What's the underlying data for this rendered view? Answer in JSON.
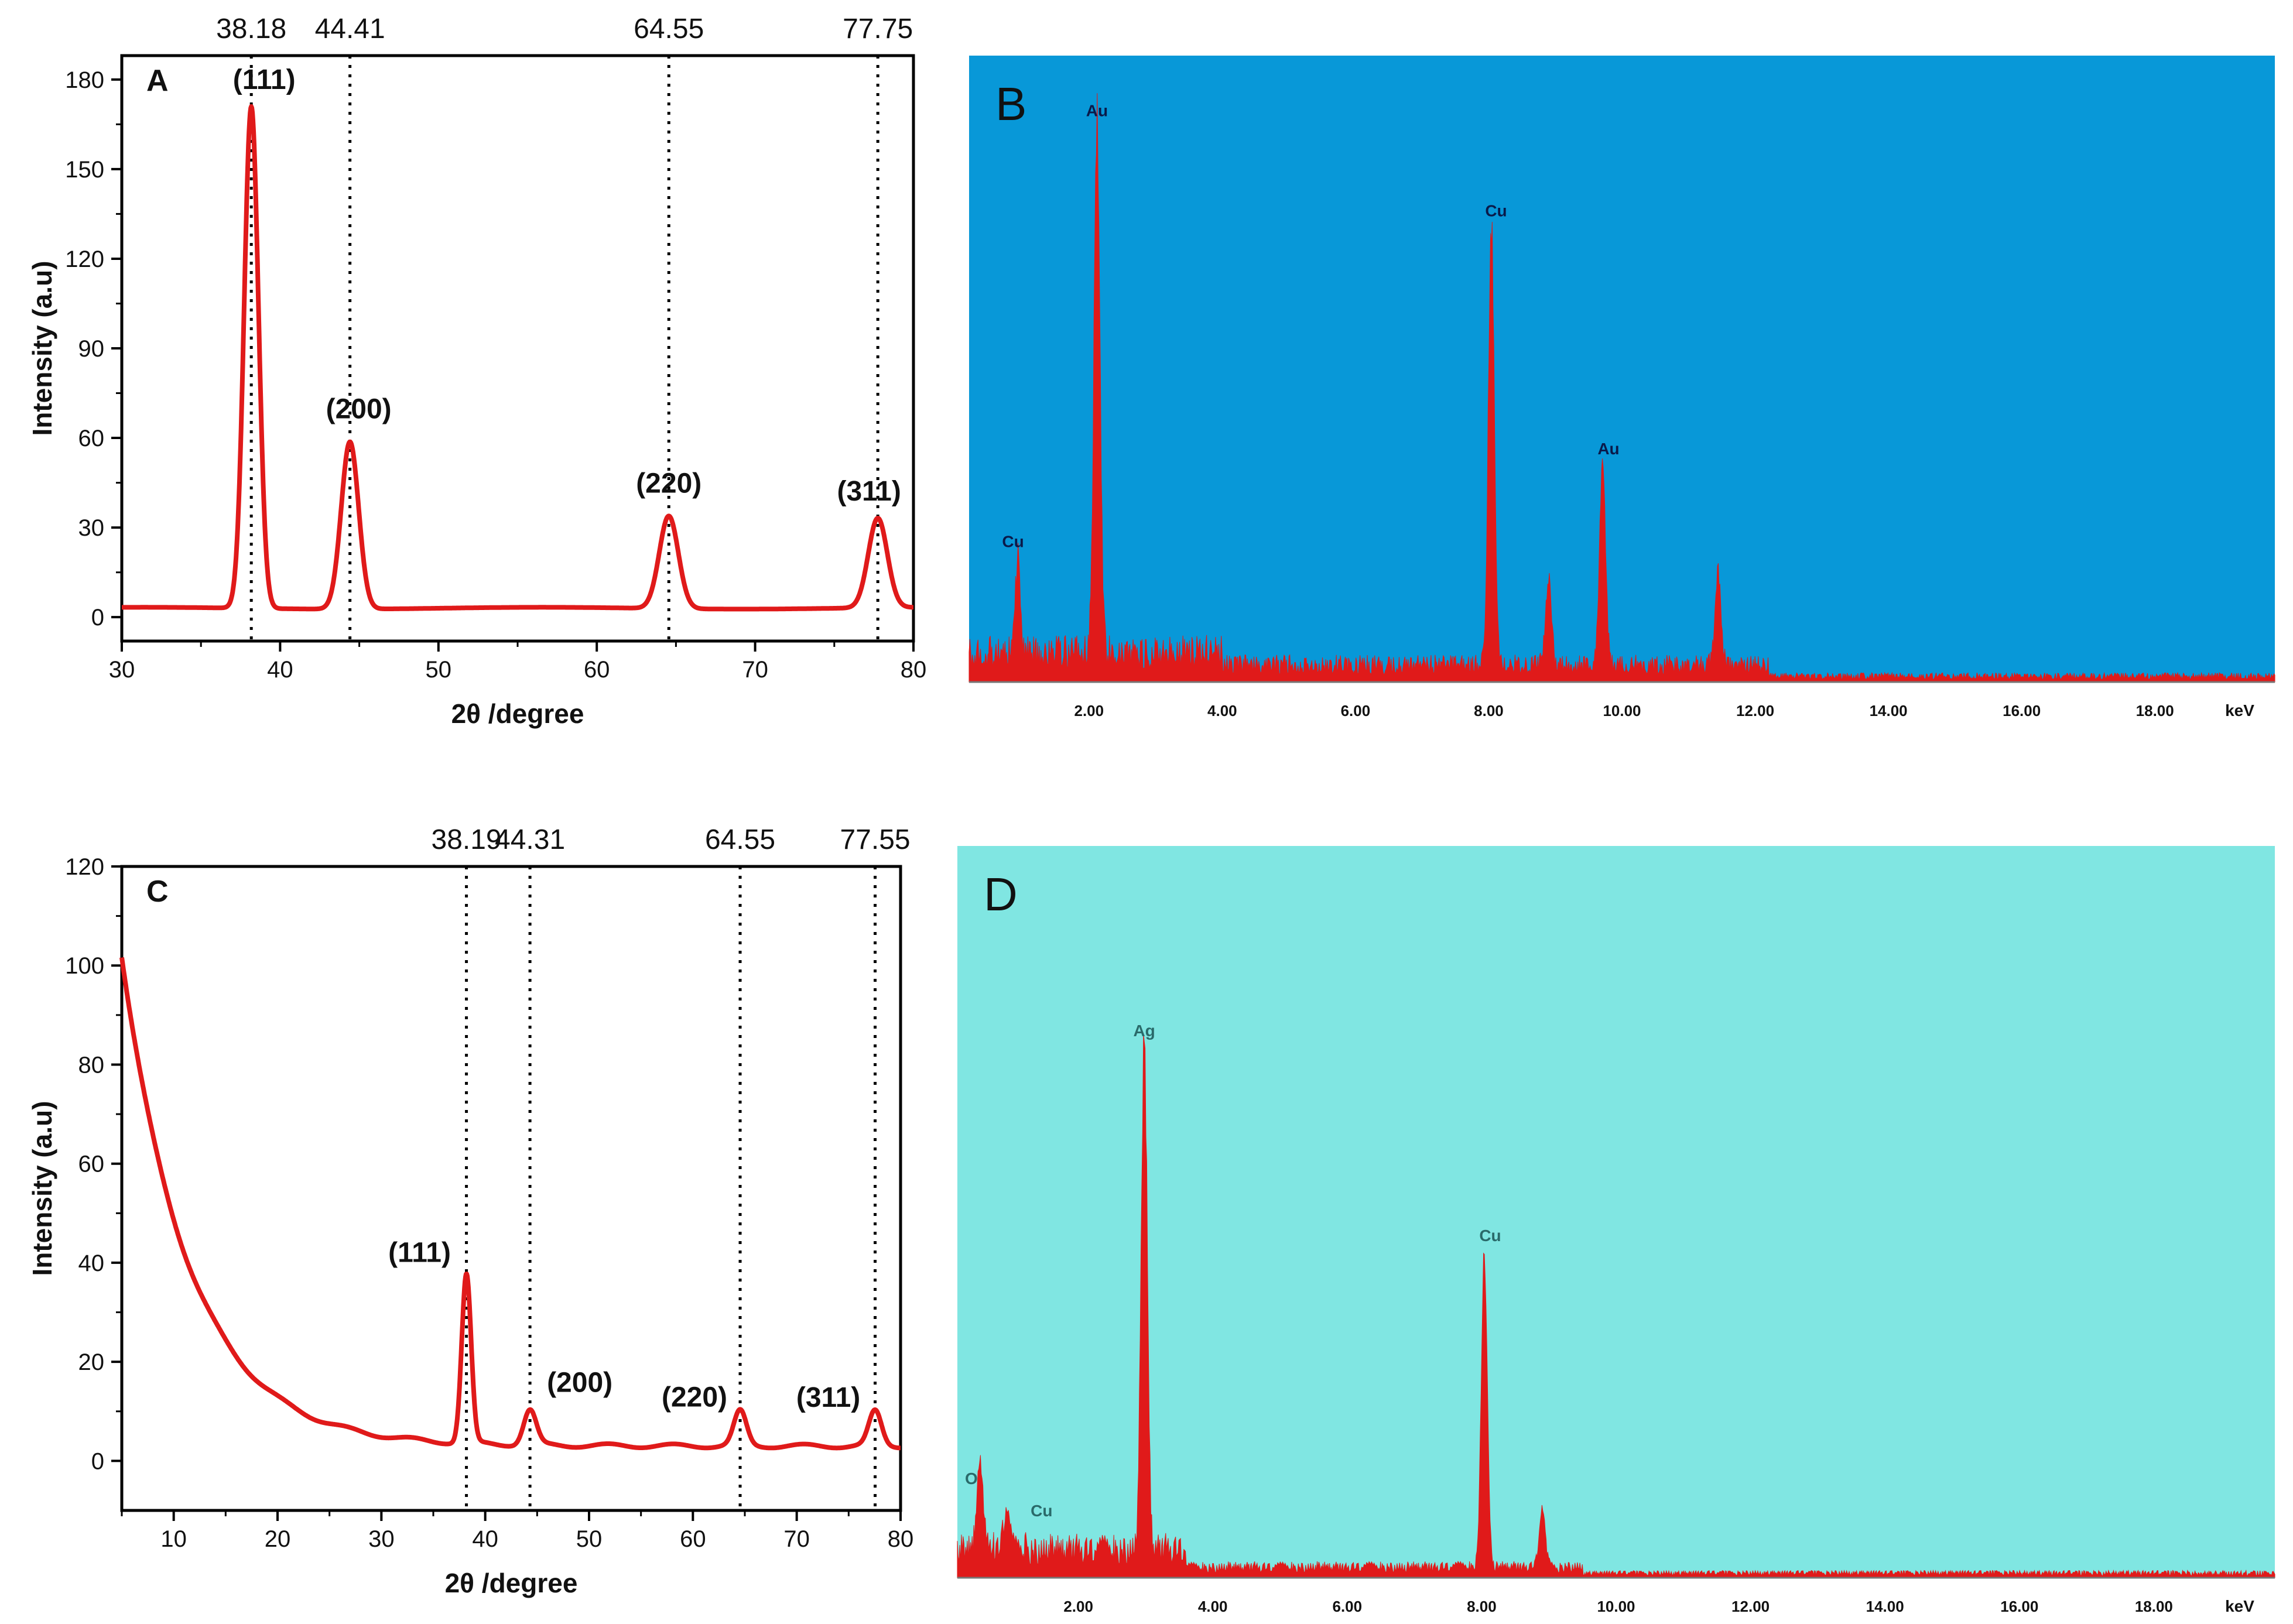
{
  "colors": {
    "line": "#e01a1a",
    "eds_bar": "#e01a1a",
    "panel_b_bg": "#0898d8",
    "panel_d_bg": "#80e6e2",
    "axis": "#000000",
    "peak_label_dark": "#0a1a4a",
    "peak_label_light": "#2a6a6a"
  },
  "chart_data": [
    {
      "panel": "A",
      "type": "line",
      "xlabel": "2θ /degree",
      "ylabel": "Intensity (a.u)",
      "xlim": [
        30,
        80
      ],
      "ylim": [
        -8,
        188
      ],
      "xticks": [
        30,
        40,
        50,
        60,
        70,
        80
      ],
      "yticks": [
        0,
        30,
        60,
        90,
        120,
        150,
        180
      ],
      "baseline": 3,
      "peaks": [
        {
          "x": 38.18,
          "height": 168,
          "width": 0.45,
          "label": "(111)",
          "ref": "38.18"
        },
        {
          "x": 44.41,
          "height": 56,
          "width": 0.55,
          "label": "(200)",
          "ref": "44.41"
        },
        {
          "x": 64.55,
          "height": 31,
          "width": 0.6,
          "label": "(220)",
          "ref": "64.55"
        },
        {
          "x": 77.75,
          "height": 30,
          "width": 0.6,
          "label": "(311)",
          "ref": "77.75"
        }
      ]
    },
    {
      "panel": "B",
      "type": "bar",
      "xlabel": "keV",
      "xlim": [
        0.2,
        19.8
      ],
      "xticks": [
        "2.00",
        "4.00",
        "6.00",
        "8.00",
        "10.00",
        "12.00",
        "14.00",
        "16.00",
        "18.00"
      ],
      "xtick_values": [
        2,
        4,
        6,
        8,
        10,
        12,
        14,
        16,
        18
      ],
      "ymax": 100,
      "peaks": [
        {
          "x": 0.93,
          "height": 15,
          "label": "Cu"
        },
        {
          "x": 2.12,
          "height": 88,
          "label": "Au"
        },
        {
          "x": 8.04,
          "height": 72,
          "label": "Cu"
        },
        {
          "x": 8.9,
          "height": 14
        },
        {
          "x": 9.71,
          "height": 34,
          "label": "Au"
        },
        {
          "x": 11.44,
          "height": 15
        }
      ]
    },
    {
      "panel": "C",
      "type": "line",
      "xlabel": "2θ /degree",
      "ylabel": "Intensity (a.u)",
      "xlim": [
        5,
        80
      ],
      "ylim": [
        -10,
        120
      ],
      "xticks": [
        10,
        20,
        30,
        40,
        50,
        60,
        70,
        80
      ],
      "yticks": [
        0,
        20,
        40,
        60,
        80,
        100,
        120
      ],
      "background_start": 102,
      "peaks": [
        {
          "x": 38.19,
          "height": 34,
          "width": 0.45,
          "label": "(111)",
          "ref": "38.19"
        },
        {
          "x": 44.31,
          "height": 7,
          "width": 0.6,
          "label": "(200)",
          "ref": "44.31"
        },
        {
          "x": 64.55,
          "height": 7,
          "width": 0.6,
          "label": "(220)",
          "ref": "64.55"
        },
        {
          "x": 77.55,
          "height": 7,
          "width": 0.6,
          "label": "(311)",
          "ref": "77.55"
        }
      ]
    },
    {
      "panel": "D",
      "type": "bar",
      "xlabel": "keV",
      "xlim": [
        0.2,
        19.8
      ],
      "xticks": [
        "2.00",
        "4.00",
        "6.00",
        "8.00",
        "10.00",
        "12.00",
        "14.00",
        "16.00",
        "18.00"
      ],
      "xtick_values": [
        2,
        4,
        6,
        8,
        10,
        12,
        14,
        16,
        18
      ],
      "ymax": 100,
      "peaks": [
        {
          "x": 0.53,
          "height": 12,
          "label": "O"
        },
        {
          "x": 0.93,
          "height": 6,
          "label": "Cu"
        },
        {
          "x": 2.98,
          "height": 72,
          "label": "Ag"
        },
        {
          "x": 8.04,
          "height": 44,
          "label": "Cu"
        },
        {
          "x": 8.9,
          "height": 8
        }
      ]
    }
  ]
}
